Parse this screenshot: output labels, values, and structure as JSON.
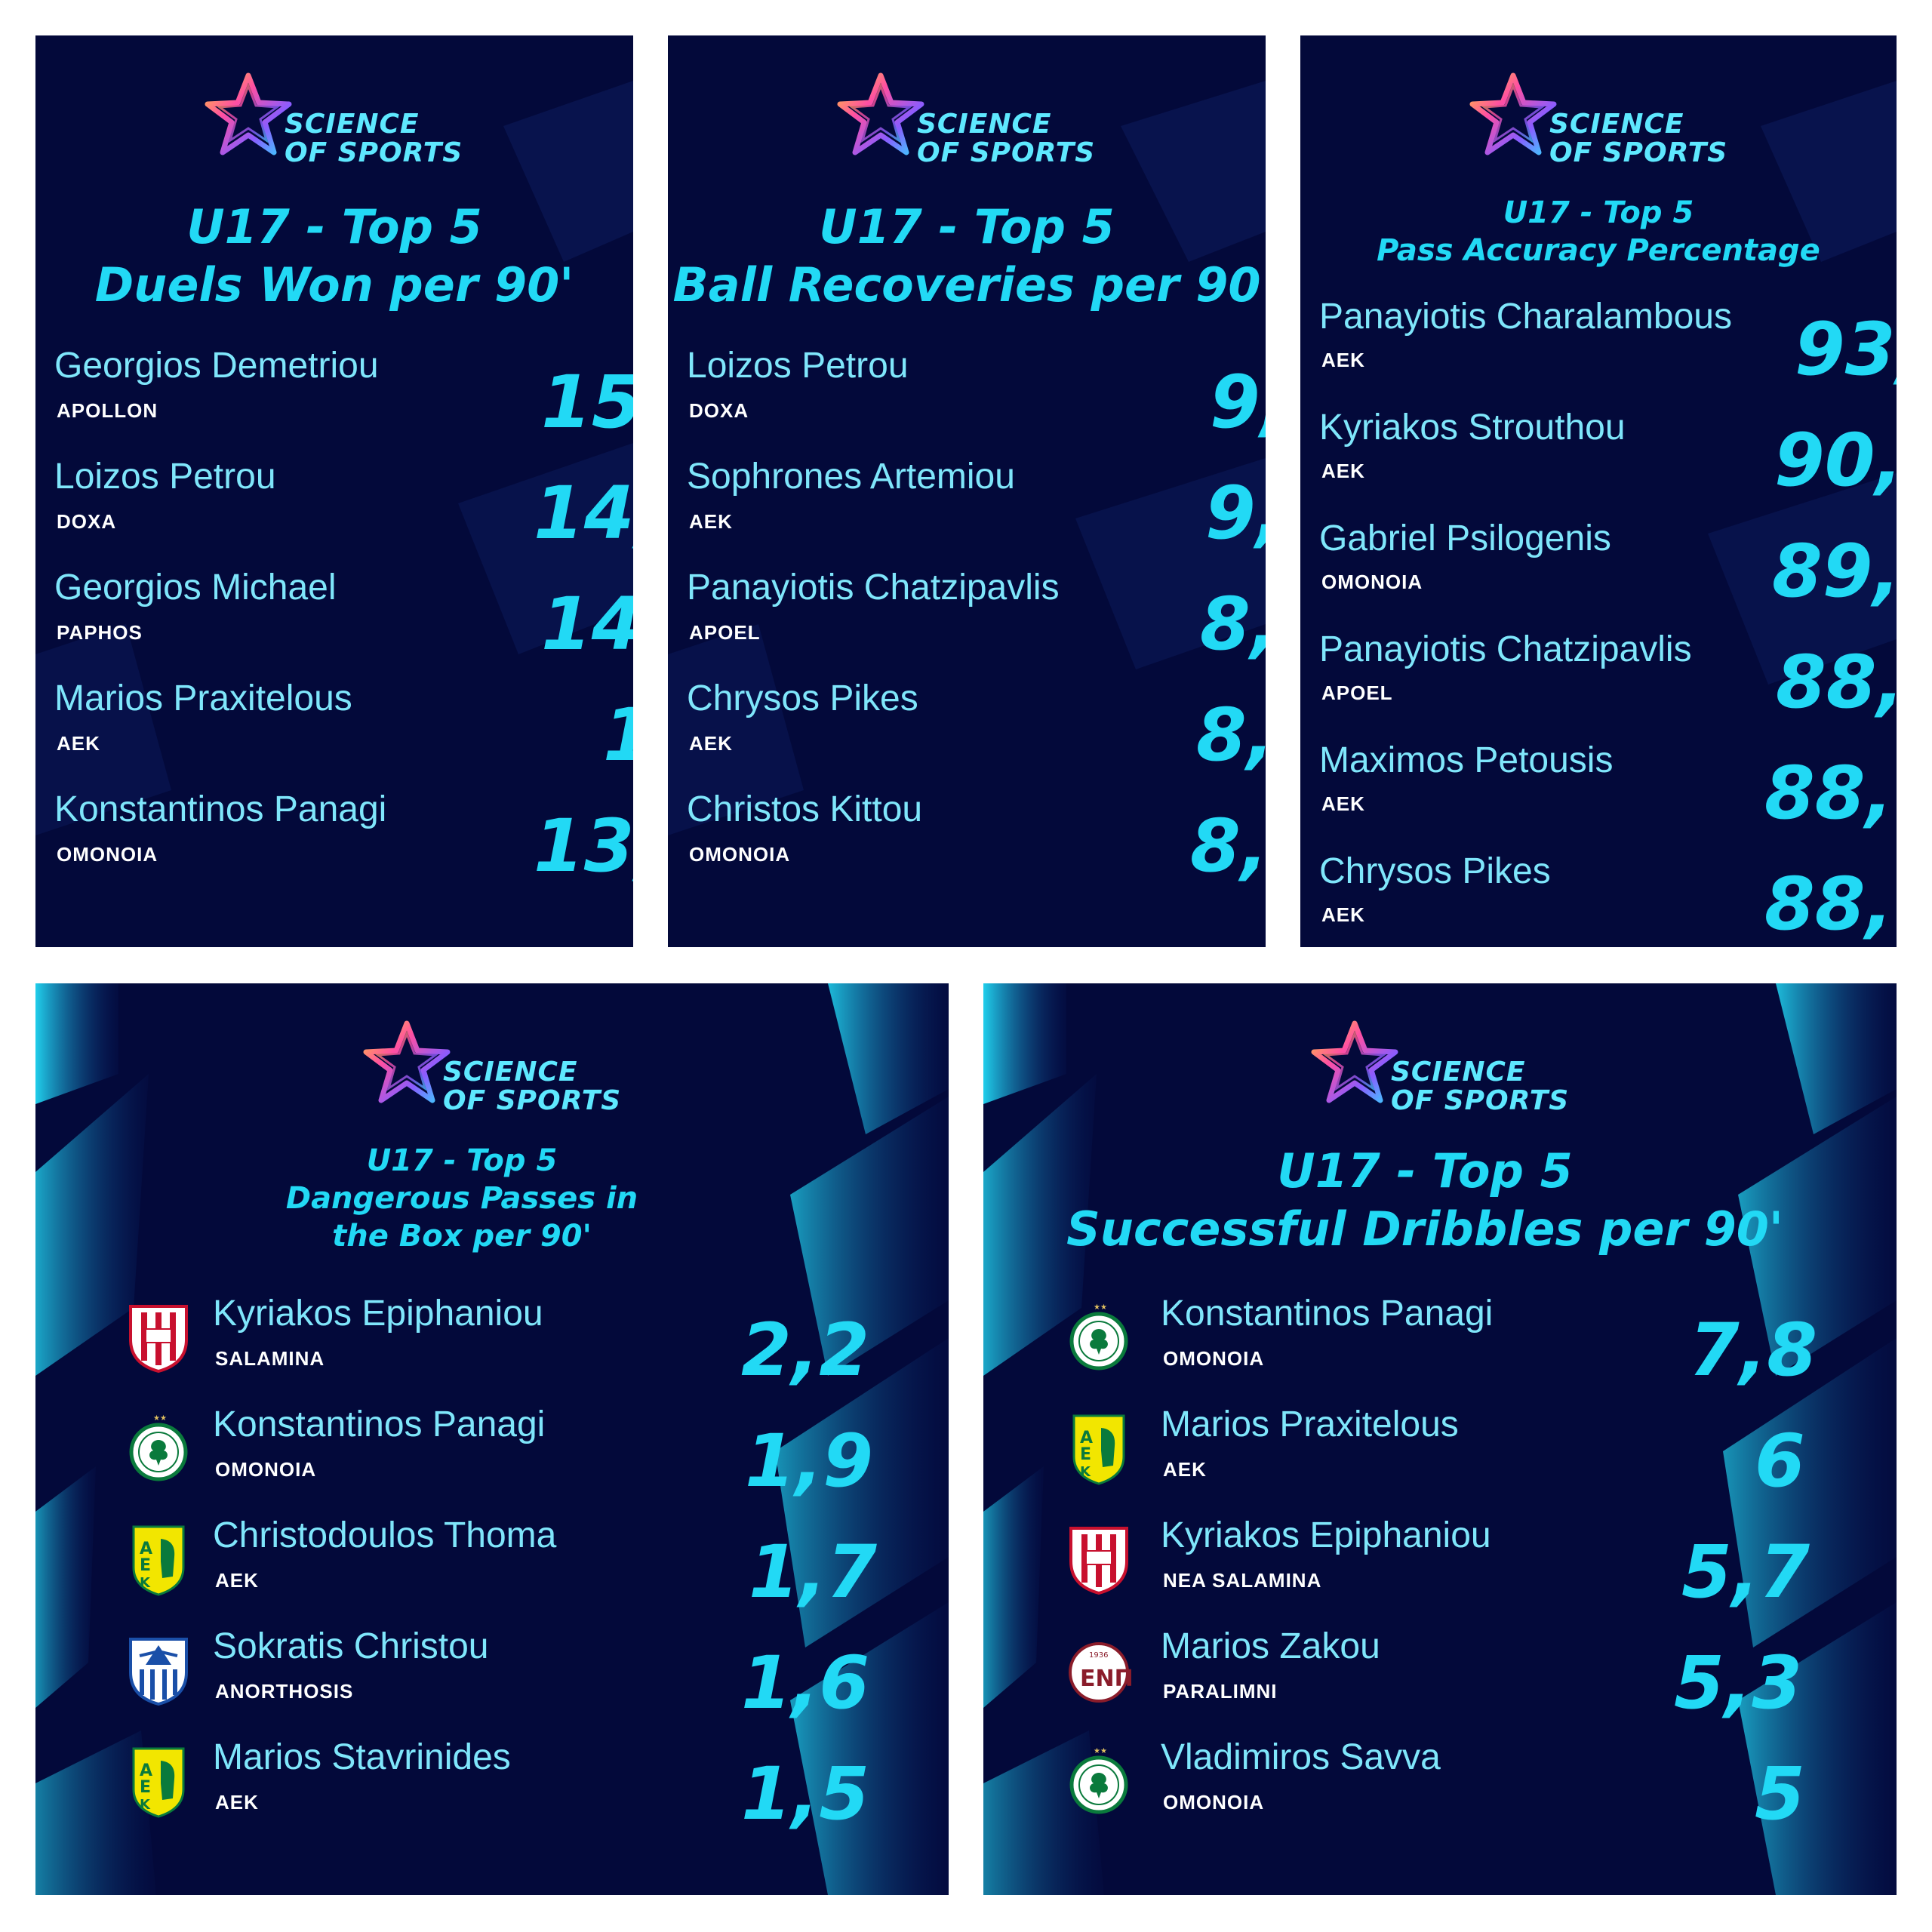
{
  "brand": {
    "line1": "SCIENCE",
    "line2": "OF SPORTS"
  },
  "colors": {
    "panel_bg": "#03093a",
    "accent": "#22d9f5",
    "name_text": "#7fe6fb",
    "team_text": "#ffffff"
  },
  "panels": [
    {
      "title_line1": "U17 - Top 5",
      "title_line2": "Duels Won per 90'",
      "rows": [
        {
          "name": "Georgios Demetriou",
          "team": "APOLLON",
          "value": "15,"
        },
        {
          "name": "Loizos Petrou",
          "team": "DOXA",
          "value": "14,"
        },
        {
          "name": "Georgios Michael",
          "team": "PAPHOS",
          "value": "14"
        },
        {
          "name": "Marios Praxitelous",
          "team": "AEK",
          "value": "1"
        },
        {
          "name": "Konstantinos Panagi",
          "team": "OMONOIA",
          "value": "13,"
        }
      ]
    },
    {
      "title_line1": "U17 - Top 5",
      "title_line2": "Ball Recoveries per 90",
      "rows": [
        {
          "name": "Loizos Petrou",
          "team": "DOXA",
          "value": "9,"
        },
        {
          "name": "Sophrones Artemiou",
          "team": "AEK",
          "value": "9,"
        },
        {
          "name": "Panayiotis Chatzipavlis",
          "team": "APOEL",
          "value": "8,"
        },
        {
          "name": "Chrysos Pikes",
          "team": "AEK",
          "value": "8,"
        },
        {
          "name": "Christos Kittou",
          "team": "OMONOIA",
          "value": "8,"
        }
      ]
    },
    {
      "title_line1": "U17 - Top 5",
      "title_line2": "Pass Accuracy Percentage",
      "rows": [
        {
          "name": "Panayiotis Charalambous",
          "team": "AEK",
          "value": "93,"
        },
        {
          "name": "Kyriakos Strouthou",
          "team": "AEK",
          "value": "90,"
        },
        {
          "name": "Gabriel Psilogenis",
          "team": "OMONOIA",
          "value": "89,"
        },
        {
          "name": "Panayiotis Chatzipavlis",
          "team": "APOEL",
          "value": "88,"
        },
        {
          "name": "Maximos Petousis",
          "team": "AEK",
          "value": "88,"
        },
        {
          "name": "Chrysos Pikes",
          "team": "AEK",
          "value": "88,"
        }
      ]
    },
    {
      "title_line1": "U17 - Top 5",
      "title_line2": "Dangerous Passes in",
      "title_line3": "the Box per 90'",
      "rows": [
        {
          "name": "Kyriakos Epiphaniou",
          "team": "SALAMINA",
          "value": "2,2",
          "badge": "salamina-badge-icon"
        },
        {
          "name": "Konstantinos Panagi",
          "team": "OMONOIA",
          "value": "1,9",
          "badge": "omonoia-badge-icon"
        },
        {
          "name": "Christodoulos Thoma",
          "team": "AEK",
          "value": "1,7",
          "badge": "aek-badge-icon"
        },
        {
          "name": "Sokratis Christou",
          "team": "ANORTHOSIS",
          "value": "1,6",
          "badge": "anorthosis-badge-icon"
        },
        {
          "name": "Marios Stavrinides",
          "team": "AEK",
          "value": "1,5",
          "badge": "aek-badge-icon"
        }
      ]
    },
    {
      "title_line1": "U17 - Top 5",
      "title_line2": "Successful Dribbles per 90'",
      "rows": [
        {
          "name": "Konstantinos Panagi",
          "team": "OMONOIA",
          "value": "7,8",
          "badge": "omonoia-badge-icon"
        },
        {
          "name": "Marios Praxitelous",
          "team": "AEK",
          "value": "6",
          "badge": "aek-badge-icon"
        },
        {
          "name": "Kyriakos Epiphaniou",
          "team": "NEA SALAMINA",
          "value": "5,7",
          "badge": "salamina-badge-icon"
        },
        {
          "name": "Marios Zakou",
          "team": "PARALIMNI",
          "value": "5,3",
          "badge": "paralimni-badge-icon"
        },
        {
          "name": "Vladimiros Savva",
          "team": "OMONOIA",
          "value": "5",
          "badge": "omonoia-badge-icon"
        }
      ]
    }
  ]
}
